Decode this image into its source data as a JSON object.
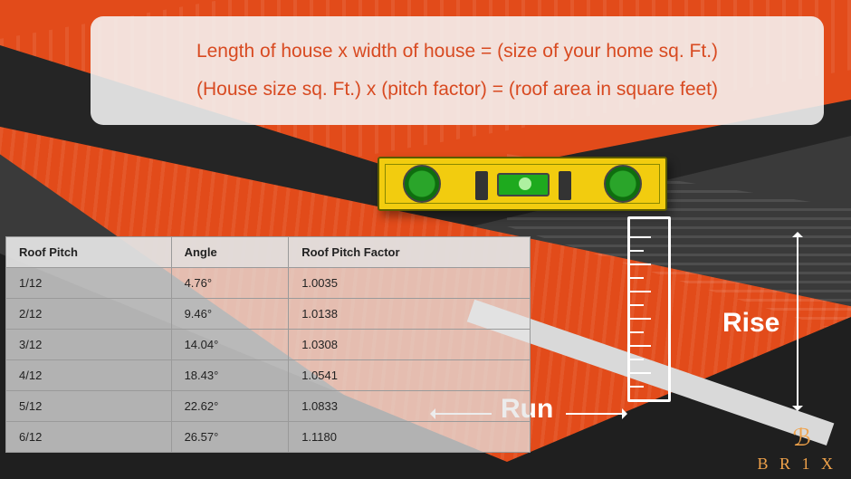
{
  "formula": {
    "line1": "Length of house x width of house = (size of your home sq. Ft.)",
    "line2": "(House size sq. Ft.) x (pitch factor) = (roof area in square feet)"
  },
  "labels": {
    "rise": "Rise",
    "run": "Run"
  },
  "table": {
    "headers": {
      "pitch": "Roof Pitch",
      "angle": "Angle",
      "factor": "Roof Pitch Factor"
    },
    "rows": [
      {
        "pitch": "1/12",
        "angle": "4.76°",
        "factor": "1.0035"
      },
      {
        "pitch": "2/12",
        "angle": "9.46°",
        "factor": "1.0138"
      },
      {
        "pitch": "3/12",
        "angle": "14.04°",
        "factor": "1.0308"
      },
      {
        "pitch": "4/12",
        "angle": "18.43°",
        "factor": "1.0541"
      },
      {
        "pitch": "5/12",
        "angle": "22.62°",
        "factor": "1.0833"
      },
      {
        "pitch": "6/12",
        "angle": "26.57°",
        "factor": "1.1180"
      }
    ]
  },
  "brand": {
    "text": "B R 1 X",
    "markGlyph": "ℬ"
  },
  "colors": {
    "formula_text": "#d84a21",
    "roof": "#e24b1a",
    "level_body": "#f2cc0f",
    "white": "#ffffff",
    "brand": "#f0a24a"
  },
  "tool": {
    "type": "spirit-level",
    "vials": 3
  },
  "ruler": {
    "tick_count": 12
  }
}
